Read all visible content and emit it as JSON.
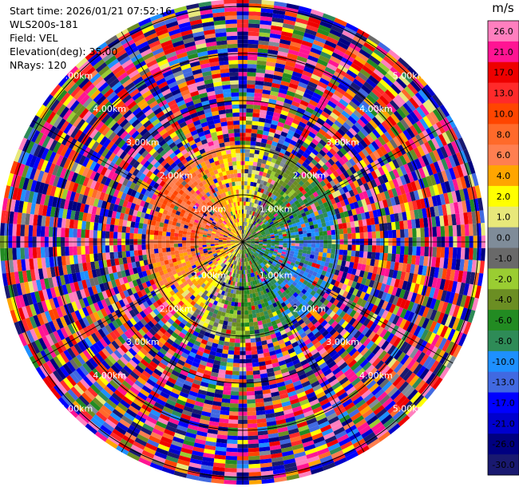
{
  "info": {
    "start_time": "Start time: 2026/01/21 07:52:16",
    "instrument": "WLS200s-181",
    "field": "Field: VEL",
    "elevation": "Elevation(deg): 35.00",
    "nrays": "NRays: 120"
  },
  "chart_data": {
    "type": "heatmap",
    "projection": "polar-ppi",
    "field": "VEL",
    "elevation_deg": 35.0,
    "nrays": 120,
    "range_rings": [
      {
        "label": "1.00km"
      },
      {
        "label": "2.00km"
      },
      {
        "label": "3.00km"
      },
      {
        "label": "4.00km"
      },
      {
        "label": "5.00km"
      }
    ],
    "colorbar": {
      "unit": "m/s",
      "ticks": [
        "26.0",
        "21.0",
        "17.0",
        "13.0",
        "10.0",
        "8.0",
        "6.0",
        "4.0",
        "2.0",
        "1.0",
        "0.0",
        "-1.0",
        "-2.0",
        "-4.0",
        "-6.0",
        "-8.0",
        "-10.0",
        "-13.0",
        "-17.0",
        "-21.0",
        "-26.0",
        "-30.0"
      ],
      "bins": [
        {
          "min": 26,
          "max": 30,
          "color": "#ff7fbf"
        },
        {
          "min": 21,
          "max": 26,
          "color": "#ff1493"
        },
        {
          "min": 17,
          "max": 21,
          "color": "#ee0000"
        },
        {
          "min": 13,
          "max": 17,
          "color": "#ff2a2a"
        },
        {
          "min": 10,
          "max": 13,
          "color": "#ff4500"
        },
        {
          "min": 8,
          "max": 10,
          "color": "#ff6a2a"
        },
        {
          "min": 6,
          "max": 8,
          "color": "#ff7f50"
        },
        {
          "min": 4,
          "max": 6,
          "color": "#ffa500"
        },
        {
          "min": 2,
          "max": 4,
          "color": "#ffff00"
        },
        {
          "min": 1,
          "max": 2,
          "color": "#e8e87a"
        },
        {
          "min": 0,
          "max": 1,
          "color": "#7f8c99"
        },
        {
          "min": -1,
          "max": 0,
          "color": "#696969"
        },
        {
          "min": -2,
          "max": -1,
          "color": "#9acd32"
        },
        {
          "min": -4,
          "max": -2,
          "color": "#6b8e23"
        },
        {
          "min": -6,
          "max": -4,
          "color": "#228b22"
        },
        {
          "min": -8,
          "max": -6,
          "color": "#2e8b57"
        },
        {
          "min": -10,
          "max": -8,
          "color": "#1e90ff"
        },
        {
          "min": -13,
          "max": -10,
          "color": "#4169e1"
        },
        {
          "min": -17,
          "max": -13,
          "color": "#0000ff"
        },
        {
          "min": -21,
          "max": -17,
          "color": "#0000cd"
        },
        {
          "min": -26,
          "max": -21,
          "color": "#000080"
        },
        {
          "min": -30,
          "max": -26,
          "color": "#191970"
        }
      ]
    }
  }
}
